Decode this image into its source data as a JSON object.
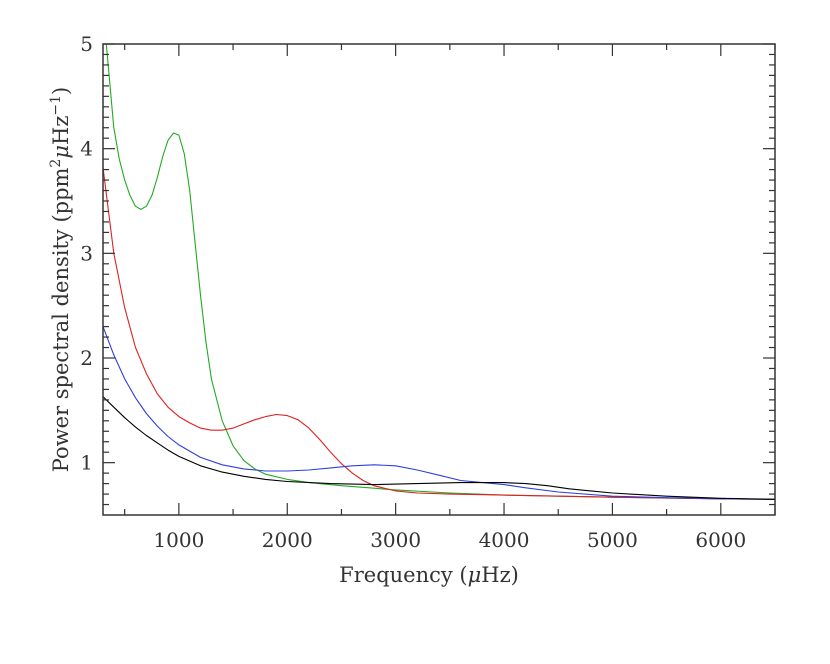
{
  "chart_data": {
    "type": "line",
    "xlabel_parts": {
      "prefix": "Frequency (",
      "mu": "μ",
      "suffix": "Hz)"
    },
    "ylabel_parts": {
      "prefix": "Power spectral density (ppm",
      "sup1": "2",
      "mu": "μ",
      "mid": "Hz",
      "sup2": "−1",
      "suffix": ")"
    },
    "xlim": [
      300,
      6500
    ],
    "ylim": [
      0.5,
      5
    ],
    "x_ticks": [
      1000,
      2000,
      3000,
      4000,
      5000,
      6000
    ],
    "x_tick_labels": [
      "1000",
      "2000",
      "3000",
      "4000",
      "5000",
      "6000"
    ],
    "y_ticks": [
      1,
      2,
      3,
      4,
      5
    ],
    "y_tick_labels": [
      "1",
      "2",
      "3",
      "4",
      "5"
    ],
    "grid": false,
    "series": [
      {
        "color": "#22aa22",
        "points": [
          [
            330,
            5.0
          ],
          [
            400,
            4.2
          ],
          [
            450,
            3.9
          ],
          [
            500,
            3.7
          ],
          [
            550,
            3.55
          ],
          [
            600,
            3.45
          ],
          [
            650,
            3.42
          ],
          [
            700,
            3.45
          ],
          [
            750,
            3.55
          ],
          [
            800,
            3.72
          ],
          [
            850,
            3.92
          ],
          [
            900,
            4.08
          ],
          [
            950,
            4.15
          ],
          [
            1000,
            4.13
          ],
          [
            1050,
            3.95
          ],
          [
            1100,
            3.6
          ],
          [
            1150,
            3.1
          ],
          [
            1200,
            2.6
          ],
          [
            1250,
            2.15
          ],
          [
            1300,
            1.8
          ],
          [
            1400,
            1.4
          ],
          [
            1500,
            1.16
          ],
          [
            1600,
            1.02
          ],
          [
            1700,
            0.94
          ],
          [
            1800,
            0.89
          ],
          [
            2000,
            0.84
          ],
          [
            2200,
            0.81
          ],
          [
            2500,
            0.78
          ],
          [
            3000,
            0.74
          ],
          [
            3500,
            0.71
          ],
          [
            4000,
            0.69
          ],
          [
            5000,
            0.67
          ],
          [
            6000,
            0.655
          ],
          [
            6500,
            0.65
          ]
        ]
      },
      {
        "color": "#e02020",
        "points": [
          [
            300,
            3.82
          ],
          [
            400,
            3.0
          ],
          [
            500,
            2.48
          ],
          [
            600,
            2.1
          ],
          [
            700,
            1.85
          ],
          [
            800,
            1.66
          ],
          [
            900,
            1.53
          ],
          [
            1000,
            1.44
          ],
          [
            1100,
            1.38
          ],
          [
            1200,
            1.33
          ],
          [
            1300,
            1.31
          ],
          [
            1400,
            1.31
          ],
          [
            1500,
            1.33
          ],
          [
            1600,
            1.37
          ],
          [
            1700,
            1.41
          ],
          [
            1800,
            1.44
          ],
          [
            1900,
            1.46
          ],
          [
            2000,
            1.45
          ],
          [
            2100,
            1.41
          ],
          [
            2200,
            1.33
          ],
          [
            2300,
            1.22
          ],
          [
            2400,
            1.1
          ],
          [
            2500,
            0.99
          ],
          [
            2600,
            0.9
          ],
          [
            2700,
            0.83
          ],
          [
            2800,
            0.78
          ],
          [
            3000,
            0.73
          ],
          [
            3200,
            0.71
          ],
          [
            3500,
            0.7
          ],
          [
            4000,
            0.69
          ],
          [
            5000,
            0.67
          ],
          [
            6000,
            0.655
          ],
          [
            6500,
            0.65
          ]
        ]
      },
      {
        "color": "#2f3fdd",
        "points": [
          [
            300,
            2.3
          ],
          [
            400,
            2.03
          ],
          [
            500,
            1.8
          ],
          [
            600,
            1.62
          ],
          [
            700,
            1.47
          ],
          [
            800,
            1.35
          ],
          [
            900,
            1.25
          ],
          [
            1000,
            1.17
          ],
          [
            1200,
            1.05
          ],
          [
            1400,
            0.98
          ],
          [
            1600,
            0.94
          ],
          [
            1800,
            0.92
          ],
          [
            2000,
            0.92
          ],
          [
            2200,
            0.93
          ],
          [
            2400,
            0.95
          ],
          [
            2600,
            0.97
          ],
          [
            2800,
            0.98
          ],
          [
            3000,
            0.97
          ],
          [
            3200,
            0.93
          ],
          [
            3400,
            0.88
          ],
          [
            3600,
            0.83
          ],
          [
            3800,
            0.81
          ],
          [
            4000,
            0.79
          ],
          [
            4200,
            0.76
          ],
          [
            4500,
            0.72
          ],
          [
            5000,
            0.68
          ],
          [
            5500,
            0.665
          ],
          [
            6000,
            0.655
          ],
          [
            6500,
            0.65
          ]
        ]
      },
      {
        "color": "#000000",
        "points": [
          [
            300,
            1.63
          ],
          [
            400,
            1.53
          ],
          [
            500,
            1.43
          ],
          [
            600,
            1.34
          ],
          [
            700,
            1.26
          ],
          [
            800,
            1.19
          ],
          [
            900,
            1.12
          ],
          [
            1000,
            1.06
          ],
          [
            1200,
            0.97
          ],
          [
            1400,
            0.91
          ],
          [
            1600,
            0.87
          ],
          [
            1800,
            0.84
          ],
          [
            2000,
            0.82
          ],
          [
            2400,
            0.8
          ],
          [
            2800,
            0.79
          ],
          [
            3200,
            0.8
          ],
          [
            3600,
            0.81
          ],
          [
            4000,
            0.81
          ],
          [
            4200,
            0.8
          ],
          [
            4400,
            0.78
          ],
          [
            4600,
            0.75
          ],
          [
            4800,
            0.73
          ],
          [
            5000,
            0.71
          ],
          [
            5500,
            0.68
          ],
          [
            6000,
            0.66
          ],
          [
            6500,
            0.65
          ]
        ]
      }
    ]
  }
}
